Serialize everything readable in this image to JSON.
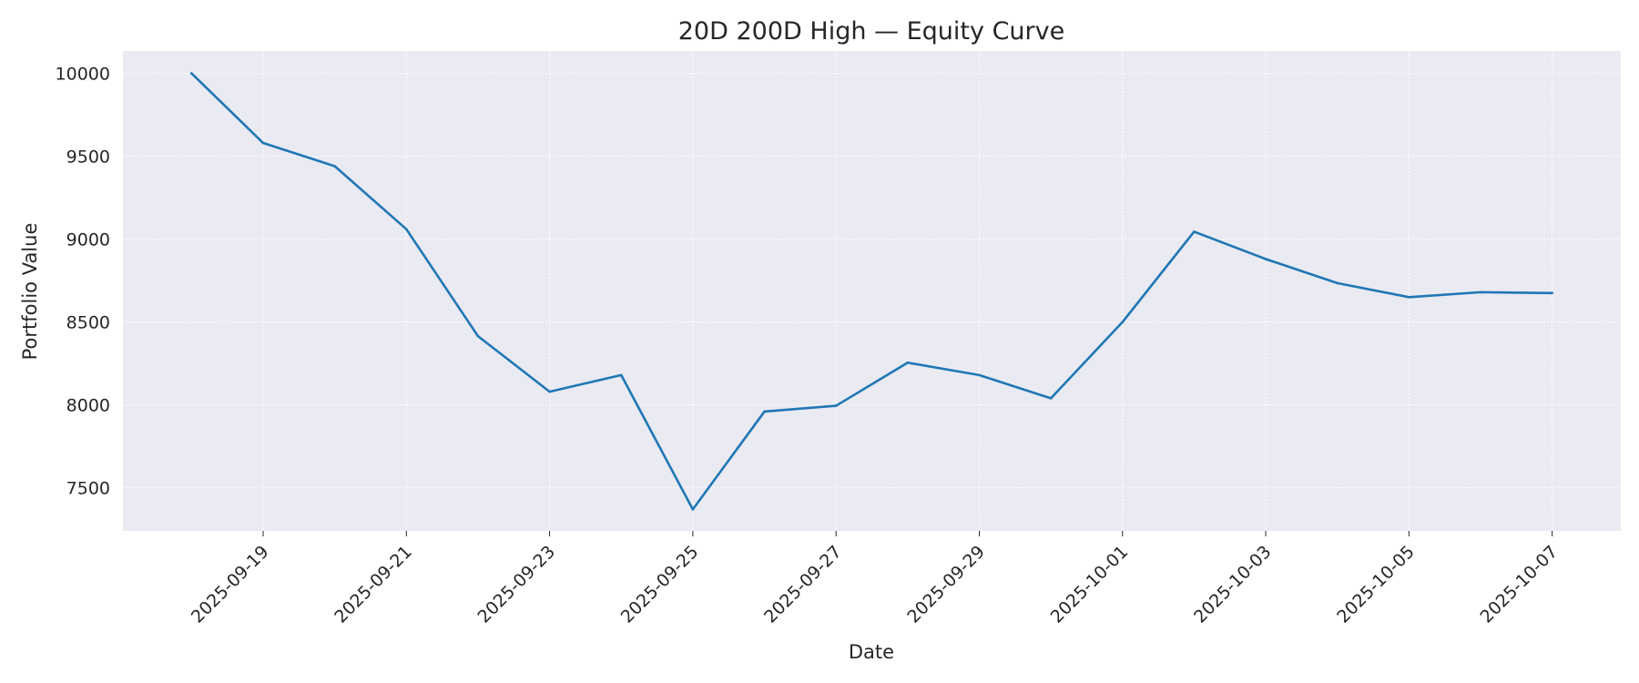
{
  "chart_data": {
    "type": "line",
    "title": "20D 200D High — Equity Curve",
    "xlabel": "Date",
    "ylabel": "Portfolio Value",
    "x": [
      "2025-09-18",
      "2025-09-19",
      "2025-09-20",
      "2025-09-21",
      "2025-09-22",
      "2025-09-23",
      "2025-09-24",
      "2025-09-25",
      "2025-09-26",
      "2025-09-27",
      "2025-09-28",
      "2025-09-29",
      "2025-09-30",
      "2025-10-01",
      "2025-10-02",
      "2025-10-03",
      "2025-10-04",
      "2025-10-05",
      "2025-10-06",
      "2025-10-07"
    ],
    "series": [
      {
        "values": [
          10000,
          9580,
          9440,
          9060,
          8415,
          8080,
          8180,
          7370,
          7960,
          7995,
          8255,
          8180,
          8040,
          8500,
          9045,
          8880,
          8735,
          8650,
          8680,
          8675
        ]
      }
    ],
    "x_ticks": [
      "2025-09-19",
      "2025-09-21",
      "2025-09-23",
      "2025-09-25",
      "2025-09-27",
      "2025-09-29",
      "2025-10-01",
      "2025-10-03",
      "2025-10-05",
      "2025-10-07"
    ],
    "y_ticks": [
      7500,
      8000,
      8500,
      9000,
      9500,
      10000
    ],
    "ylim": [
      7240,
      10135
    ],
    "xlim": [
      "2025-09-17 01:00",
      "2025-10-07 23:00"
    ],
    "grid": true,
    "line_color": "#1f77b4",
    "plot_background": "#eaeaf2",
    "grid_color": "#ffffff"
  }
}
